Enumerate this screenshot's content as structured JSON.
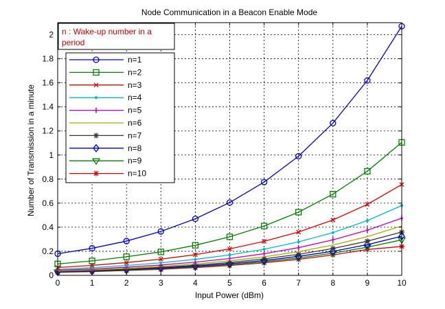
{
  "chart_data": {
    "type": "line",
    "title": "Node Communication in a Beacon Enable Mode",
    "xlabel": "Input Power (dBm)",
    "ylabel": "Number of Transmission  in a minute",
    "xlim": [
      0,
      10
    ],
    "ylim": [
      0,
      2.1
    ],
    "xticks": [
      "0",
      "1",
      "2",
      "3",
      "4",
      "5",
      "6",
      "7",
      "8",
      "9",
      "10"
    ],
    "yticks": [
      "0",
      "0.2",
      "0.4",
      "0.6",
      "0.8",
      "1",
      "1.2",
      "1.4",
      "1.6",
      "1.8",
      "2"
    ],
    "grid": true,
    "legend_position": "top-left",
    "annotation": "n : Wake-up number in a period",
    "x": [
      0,
      1,
      2,
      3,
      4,
      5,
      6,
      7,
      8,
      9,
      10
    ],
    "series": [
      {
        "name": "n=1",
        "color": "#0000cc",
        "marker": "circle",
        "values": [
          0.18,
          0.225,
          0.285,
          0.365,
          0.47,
          0.605,
          0.775,
          0.99,
          1.265,
          1.62,
          2.07
        ]
      },
      {
        "name": "n=2",
        "color": "#008000",
        "marker": "square",
        "values": [
          0.095,
          0.12,
          0.155,
          0.195,
          0.25,
          0.32,
          0.41,
          0.525,
          0.675,
          0.865,
          1.105
        ]
      },
      {
        "name": "n=3",
        "color": "#dd0000",
        "marker": "x",
        "values": [
          0.065,
          0.083,
          0.106,
          0.135,
          0.172,
          0.22,
          0.283,
          0.36,
          0.46,
          0.59,
          0.755
        ]
      },
      {
        "name": "n=4",
        "color": "#00bbbb",
        "marker": "dot",
        "values": [
          0.05,
          0.064,
          0.082,
          0.104,
          0.133,
          0.17,
          0.217,
          0.278,
          0.355,
          0.455,
          0.58
        ]
      },
      {
        "name": "n=5",
        "color": "#bb00bb",
        "marker": "vbar",
        "values": [
          0.042,
          0.053,
          0.068,
          0.086,
          0.11,
          0.14,
          0.18,
          0.23,
          0.295,
          0.375,
          0.475
        ]
      },
      {
        "name": "n=6",
        "color": "#aaaa00",
        "marker": "none",
        "values": [
          0.036,
          0.046,
          0.058,
          0.074,
          0.095,
          0.121,
          0.154,
          0.197,
          0.252,
          0.322,
          0.41
        ]
      },
      {
        "name": "n=7",
        "color": "#333333",
        "marker": "star",
        "values": [
          0.032,
          0.04,
          0.051,
          0.066,
          0.084,
          0.107,
          0.137,
          0.175,
          0.223,
          0.284,
          0.36
        ]
      },
      {
        "name": "n=8",
        "color": "#0000cc",
        "marker": "diamond",
        "values": [
          0.029,
          0.037,
          0.047,
          0.06,
          0.076,
          0.097,
          0.123,
          0.158,
          0.2,
          0.255,
          0.325
        ]
      },
      {
        "name": "n=9",
        "color": "#008000",
        "marker": "triangle",
        "values": [
          0.027,
          0.034,
          0.043,
          0.055,
          0.07,
          0.089,
          0.113,
          0.144,
          0.184,
          0.234,
          0.295
        ]
      },
      {
        "name": "n=10",
        "color": "#dd0000",
        "marker": "star",
        "values": [
          0.025,
          0.031,
          0.04,
          0.05,
          0.064,
          0.082,
          0.104,
          0.133,
          0.17,
          0.215,
          0.24
        ]
      }
    ]
  }
}
